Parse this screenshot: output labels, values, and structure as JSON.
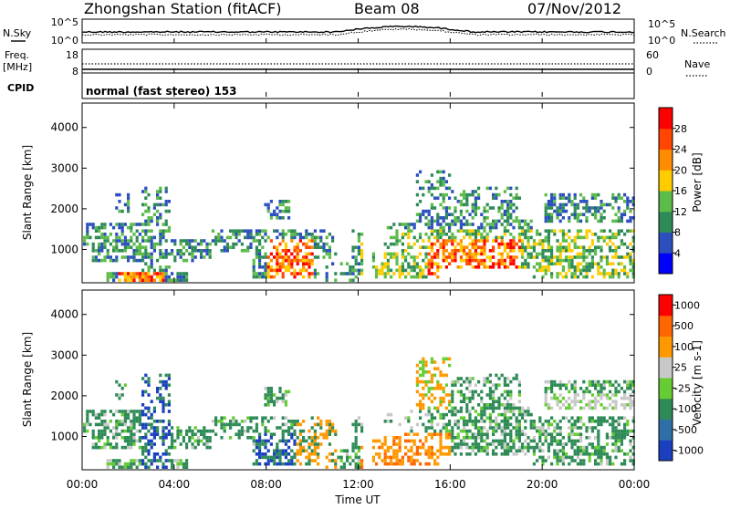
{
  "header": {
    "station": "Zhongshan Station (fitACF)",
    "beam": "Beam 08",
    "date": "07/Nov/2012"
  },
  "strips": {
    "nsky_label": "N.Sky",
    "nsearch_label": "N.Search",
    "freq_label_top": "Freq.",
    "freq_label_unit": "[MHz]",
    "nave_label": "Nave",
    "cpid_label": "CPID",
    "cpid_value": "normal (fast stereo) 153",
    "noise_left_ticks": [
      "10^5",
      "10^0"
    ],
    "noise_right_ticks": [
      "10^5",
      "10^0"
    ],
    "freq_left_ticks": [
      "18",
      "8"
    ],
    "nave_right_ticks": [
      "60",
      "0"
    ]
  },
  "chart_data": [
    {
      "type": "heatmap",
      "title": "",
      "xlabel": "Time UT",
      "ylabel": "Slant Range [km]",
      "x_ticks": [
        "00:00",
        "04:00",
        "08:00",
        "12:00",
        "16:00",
        "20:00",
        "00:00"
      ],
      "y_ticks": [
        1000,
        2000,
        3000,
        4000
      ],
      "ylim": [
        180,
        4600
      ],
      "colorbar": {
        "label": "Power [dB]",
        "ticks": [
          "4",
          "8",
          "12",
          "16",
          "20",
          "24",
          "28"
        ],
        "colors": [
          "#0000ff",
          "#2b4fbf",
          "#2e8b57",
          "#5dbb4a",
          "#ffcc00",
          "#ff8c00",
          "#ff4500",
          "#ff0000"
        ]
      }
    },
    {
      "type": "heatmap",
      "title": "",
      "xlabel": "Time UT",
      "ylabel": "Slant Range [km]",
      "x_ticks": [
        "00:00",
        "04:00",
        "08:00",
        "12:00",
        "16:00",
        "20:00",
        "00:00"
      ],
      "y_ticks": [
        1000,
        2000,
        3000,
        4000
      ],
      "ylim": [
        180,
        4600
      ],
      "colorbar": {
        "label": "Velocity [m s-1]",
        "ticks": [
          "1000",
          "500",
          "100",
          "25",
          "-25",
          "-100",
          "-500",
          "-1000"
        ],
        "colors": [
          "#1a3fbf",
          "#2e6fa8",
          "#2e8b57",
          "#66cc33",
          "#c8c8c8",
          "#ff9900",
          "#ff6600",
          "#ff0000"
        ]
      }
    }
  ]
}
